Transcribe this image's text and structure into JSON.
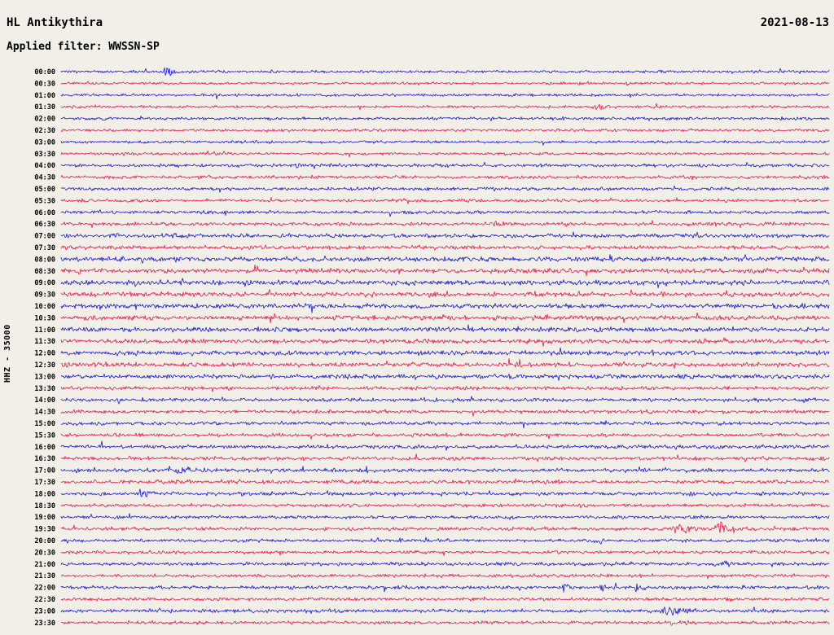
{
  "header": {
    "station": "HL Antikythira",
    "date": "2021-08-13",
    "filter_label": "Applied filter: WWSSN-SP"
  },
  "colors": {
    "trace_blue": "#1717d1",
    "trace_red": "#e8174a",
    "background": "#f2efe8",
    "text": "#000000"
  },
  "chart_data": {
    "type": "line",
    "chart_kind": "helicorder-seismogram",
    "title": "HL Antikythira",
    "date": "2021-08-13",
    "filter": "WWSSN-SP",
    "y_axis_label": "HHZ - 35000",
    "channel": "HHZ",
    "scale": 35000,
    "minutes_per_row": 30,
    "legend_position": "none",
    "grid": false,
    "rows": [
      {
        "time": "00:00",
        "color": "blue",
        "noise": 1.1,
        "events": [
          {
            "x": 0.135,
            "amp": 8,
            "w": 10
          }
        ]
      },
      {
        "time": "00:30",
        "color": "red",
        "noise": 1.1,
        "events": []
      },
      {
        "time": "01:00",
        "color": "blue",
        "noise": 1.1,
        "events": []
      },
      {
        "time": "01:30",
        "color": "red",
        "noise": 1.1,
        "events": [
          {
            "x": 0.7,
            "amp": 4,
            "w": 12
          }
        ]
      },
      {
        "time": "02:00",
        "color": "blue",
        "noise": 1.2,
        "events": []
      },
      {
        "time": "02:30",
        "color": "red",
        "noise": 1.1,
        "events": []
      },
      {
        "time": "03:00",
        "color": "blue",
        "noise": 1.1,
        "events": [
          {
            "x": 0.65,
            "amp": 3,
            "w": 6
          }
        ]
      },
      {
        "time": "03:30",
        "color": "red",
        "noise": 1.1,
        "events": []
      },
      {
        "time": "04:00",
        "color": "blue",
        "noise": 1.3,
        "events": [
          {
            "x": 0.305,
            "amp": 3.5,
            "w": 16
          },
          {
            "x": 0.62,
            "amp": 2,
            "w": 8
          }
        ]
      },
      {
        "time": "04:30",
        "color": "red",
        "noise": 1.3,
        "events": [
          {
            "x": 0.18,
            "amp": 2.5,
            "w": 8
          }
        ]
      },
      {
        "time": "05:00",
        "color": "blue",
        "noise": 1.3,
        "events": []
      },
      {
        "time": "05:30",
        "color": "red",
        "noise": 1.3,
        "events": []
      },
      {
        "time": "06:00",
        "color": "blue",
        "noise": 1.3,
        "events": [
          {
            "x": 0.54,
            "amp": 2.5,
            "w": 8
          }
        ]
      },
      {
        "time": "06:30",
        "color": "red",
        "noise": 1.4,
        "events": [
          {
            "x": 0.565,
            "amp": 3.5,
            "w": 10
          },
          {
            "x": 0.7,
            "amp": 2,
            "w": 6
          }
        ]
      },
      {
        "time": "07:00",
        "color": "blue",
        "noise": 1.6,
        "events": []
      },
      {
        "time": "07:30",
        "color": "red",
        "noise": 1.6,
        "events": []
      },
      {
        "time": "08:00",
        "color": "blue",
        "noise": 1.9,
        "events": [
          {
            "x": 0.33,
            "amp": 2.5,
            "w": 8
          }
        ]
      },
      {
        "time": "08:30",
        "color": "red",
        "noise": 1.9,
        "events": [
          {
            "x": 0.44,
            "amp": 2.5,
            "w": 8
          }
        ]
      },
      {
        "time": "09:00",
        "color": "blue",
        "noise": 2.0,
        "events": [
          {
            "x": 0.24,
            "amp": 3,
            "w": 14
          },
          {
            "x": 0.89,
            "amp": 2.5,
            "w": 8
          }
        ]
      },
      {
        "time": "09:30",
        "color": "red",
        "noise": 1.9,
        "events": [
          {
            "x": 0.62,
            "amp": 2.5,
            "w": 8
          }
        ]
      },
      {
        "time": "10:00",
        "color": "blue",
        "noise": 1.9,
        "events": []
      },
      {
        "time": "10:30",
        "color": "red",
        "noise": 1.9,
        "events": [
          {
            "x": 0.89,
            "amp": 3,
            "w": 8
          }
        ]
      },
      {
        "time": "11:00",
        "color": "blue",
        "noise": 1.9,
        "events": []
      },
      {
        "time": "11:30",
        "color": "red",
        "noise": 1.8,
        "events": []
      },
      {
        "time": "12:00",
        "color": "blue",
        "noise": 1.8,
        "events": []
      },
      {
        "time": "12:30",
        "color": "red",
        "noise": 1.8,
        "events": [
          {
            "x": 0.07,
            "amp": 2.5,
            "w": 8
          }
        ]
      },
      {
        "time": "13:00",
        "color": "blue",
        "noise": 1.8,
        "events": []
      },
      {
        "time": "13:30",
        "color": "red",
        "noise": 1.4,
        "events": []
      },
      {
        "time": "14:00",
        "color": "blue",
        "noise": 1.4,
        "events": [
          {
            "x": 0.615,
            "amp": 3.5,
            "w": 6
          }
        ]
      },
      {
        "time": "14:30",
        "color": "red",
        "noise": 1.4,
        "events": []
      },
      {
        "time": "15:00",
        "color": "blue",
        "noise": 1.4,
        "events": [
          {
            "x": 0.705,
            "amp": 5,
            "w": 8
          }
        ]
      },
      {
        "time": "15:30",
        "color": "red",
        "noise": 1.4,
        "events": []
      },
      {
        "time": "16:00",
        "color": "blue",
        "noise": 1.5,
        "events": [
          {
            "x": 0.795,
            "amp": 2.5,
            "w": 6
          },
          {
            "x": 0.905,
            "amp": 2.5,
            "w": 6
          }
        ]
      },
      {
        "time": "16:30",
        "color": "red",
        "noise": 1.5,
        "events": []
      },
      {
        "time": "17:00",
        "color": "blue",
        "noise": 1.5,
        "events": [
          {
            "x": 0.155,
            "amp": 5,
            "w": 14
          },
          {
            "x": 0.275,
            "amp": 2,
            "w": 8
          }
        ]
      },
      {
        "time": "17:30",
        "color": "red",
        "noise": 1.5,
        "events": [
          {
            "x": 0.09,
            "amp": 3,
            "w": 10
          },
          {
            "x": 0.135,
            "amp": 5,
            "w": 18
          },
          {
            "x": 0.37,
            "amp": 3.5,
            "w": 12
          }
        ]
      },
      {
        "time": "18:00",
        "color": "blue",
        "noise": 1.5,
        "events": [
          {
            "x": 0.105,
            "amp": 5,
            "w": 16
          },
          {
            "x": 0.345,
            "amp": 2.5,
            "w": 10
          }
        ]
      },
      {
        "time": "18:30",
        "color": "red",
        "noise": 1.4,
        "events": []
      },
      {
        "time": "19:00",
        "color": "blue",
        "noise": 1.3,
        "events": []
      },
      {
        "time": "19:30",
        "color": "red",
        "noise": 1.3,
        "events": [
          {
            "x": 0.805,
            "amp": 7,
            "w": 18
          },
          {
            "x": 0.86,
            "amp": 11,
            "w": 16
          }
        ]
      },
      {
        "time": "20:00",
        "color": "blue",
        "noise": 1.3,
        "events": []
      },
      {
        "time": "20:30",
        "color": "red",
        "noise": 1.3,
        "events": []
      },
      {
        "time": "21:00",
        "color": "blue",
        "noise": 1.4,
        "events": [
          {
            "x": 0.105,
            "amp": 3,
            "w": 8
          },
          {
            "x": 0.865,
            "amp": 4,
            "w": 12
          }
        ]
      },
      {
        "time": "21:30",
        "color": "red",
        "noise": 1.3,
        "events": []
      },
      {
        "time": "22:00",
        "color": "blue",
        "noise": 1.4,
        "events": [
          {
            "x": 0.655,
            "amp": 7,
            "w": 6
          },
          {
            "x": 0.705,
            "amp": 5,
            "w": 10
          },
          {
            "x": 0.75,
            "amp": 7,
            "w": 8
          }
        ]
      },
      {
        "time": "22:30",
        "color": "red",
        "noise": 1.3,
        "events": []
      },
      {
        "time": "23:00",
        "color": "blue",
        "noise": 1.4,
        "events": [
          {
            "x": 0.79,
            "amp": 8,
            "w": 18
          }
        ]
      },
      {
        "time": "23:30",
        "color": "red",
        "noise": 1.3,
        "events": [
          {
            "x": 0.815,
            "amp": 4,
            "w": 5
          }
        ]
      }
    ]
  }
}
